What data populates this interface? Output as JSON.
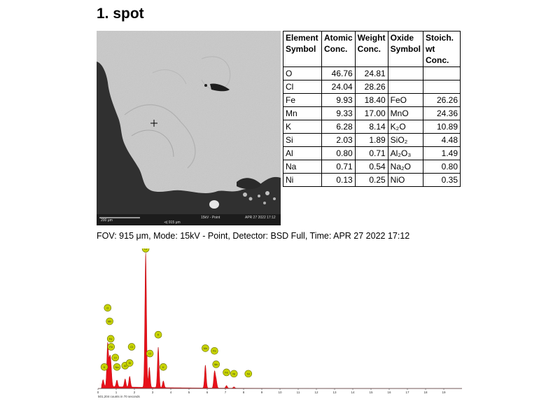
{
  "title": "1. spot",
  "sem_image": {
    "scale_bar_label": "200 μm",
    "fov_label": "915 μm",
    "mode_label": "15kV - Point",
    "timestamp": "APR 27 2022 17:12"
  },
  "table": {
    "headers": [
      "Element Symbol",
      "Atomic Conc.",
      "Weight Conc.",
      "Oxide Symbol",
      "Stoich. wt Conc."
    ],
    "rows": [
      {
        "element": "O",
        "atomic": "46.76",
        "weight": "24.81",
        "oxide": "",
        "stoich": ""
      },
      {
        "element": "Cl",
        "atomic": "24.04",
        "weight": "28.26",
        "oxide": "",
        "stoich": ""
      },
      {
        "element": "Fe",
        "atomic": "9.93",
        "weight": "18.40",
        "oxide": "FeO",
        "stoich": "26.26"
      },
      {
        "element": "Mn",
        "atomic": "9.33",
        "weight": "17.00",
        "oxide": "MnO",
        "stoich": "24.36"
      },
      {
        "element": "K",
        "atomic": "6.28",
        "weight": "8.14",
        "oxide": "K₂O",
        "stoich": "10.89"
      },
      {
        "element": "Si",
        "atomic": "2.03",
        "weight": "1.89",
        "oxide": "SiO₂",
        "stoich": "4.48"
      },
      {
        "element": "Al",
        "atomic": "0.80",
        "weight": "0.71",
        "oxide": "Al₂O₃",
        "stoich": "1.49"
      },
      {
        "element": "Na",
        "atomic": "0.71",
        "weight": "0.54",
        "oxide": "Na₂O",
        "stoich": "0.80"
      },
      {
        "element": "Ni",
        "atomic": "0.13",
        "weight": "0.25",
        "oxide": "NiO",
        "stoich": "0.35"
      }
    ]
  },
  "fov_caption": "FOV: 915 μm, Mode: 15kV - Point, Detector: BSD Full, Time: APR 27 2022 17:12",
  "colors": {
    "spectrum_fill": "#e8101a",
    "marker_fill": "#c8d400",
    "marker_stroke": "#6a7000"
  },
  "chart_data": {
    "type": "area",
    "xlim": [
      0,
      20
    ],
    "x_ticks": [
      "0",
      "1",
      "2",
      "3",
      "4",
      "5",
      "6",
      "7",
      "8",
      "9",
      "10",
      "11",
      "12",
      "13",
      "14",
      "15",
      "16",
      "17",
      "18",
      "19"
    ],
    "counts_label": "501,204 counts in 70 seconds",
    "peaks": [
      {
        "energy": 0.28,
        "height": 0.05
      },
      {
        "energy": 0.53,
        "height": 0.32
      },
      {
        "energy": 0.64,
        "height": 0.17
      },
      {
        "energy": 0.71,
        "height": 0.14
      },
      {
        "energy": 1.04,
        "height": 0.05
      },
      {
        "energy": 1.49,
        "height": 0.06
      },
      {
        "energy": 1.74,
        "height": 0.08
      },
      {
        "energy": 2.62,
        "height": 1.0
      },
      {
        "energy": 2.82,
        "height": 0.15
      },
      {
        "energy": 3.31,
        "height": 0.3
      },
      {
        "energy": 3.59,
        "height": 0.05
      },
      {
        "energy": 5.9,
        "height": 0.17
      },
      {
        "energy": 6.4,
        "height": 0.12
      },
      {
        "energy": 6.49,
        "height": 0.06
      },
      {
        "energy": 7.06,
        "height": 0.02
      },
      {
        "energy": 7.47,
        "height": 0.01
      }
    ],
    "markers": [
      {
        "label": "O",
        "energy": 0.53,
        "y": 0.6
      },
      {
        "label": "Mn",
        "energy": 0.64,
        "y": 0.5
      },
      {
        "label": "Fe",
        "energy": 0.7,
        "y": 0.37
      },
      {
        "label": "Fe",
        "energy": 0.72,
        "y": 0.31
      },
      {
        "label": "K",
        "energy": 0.35,
        "y": 0.16
      },
      {
        "label": "Na",
        "energy": 1.04,
        "y": 0.16
      },
      {
        "label": "Cl",
        "energy": 0.95,
        "y": 0.23
      },
      {
        "label": "Al",
        "energy": 1.49,
        "y": 0.17
      },
      {
        "label": "Si",
        "energy": 1.74,
        "y": 0.19
      },
      {
        "label": "Cl",
        "energy": 1.85,
        "y": 0.31
      },
      {
        "label": "Cl",
        "energy": 2.62,
        "y": 1.04
      },
      {
        "label": "Cl",
        "energy": 2.85,
        "y": 0.26
      },
      {
        "label": "K",
        "energy": 3.31,
        "y": 0.4
      },
      {
        "label": "K",
        "energy": 3.59,
        "y": 0.16
      },
      {
        "label": "Mn",
        "energy": 5.9,
        "y": 0.3
      },
      {
        "label": "Fe",
        "energy": 6.4,
        "y": 0.28
      },
      {
        "label": "Mn",
        "energy": 6.49,
        "y": 0.18
      },
      {
        "label": "Fe",
        "energy": 7.06,
        "y": 0.12
      },
      {
        "label": "Ni",
        "energy": 7.47,
        "y": 0.11
      },
      {
        "label": "Ni",
        "energy": 8.26,
        "y": 0.11
      }
    ]
  }
}
